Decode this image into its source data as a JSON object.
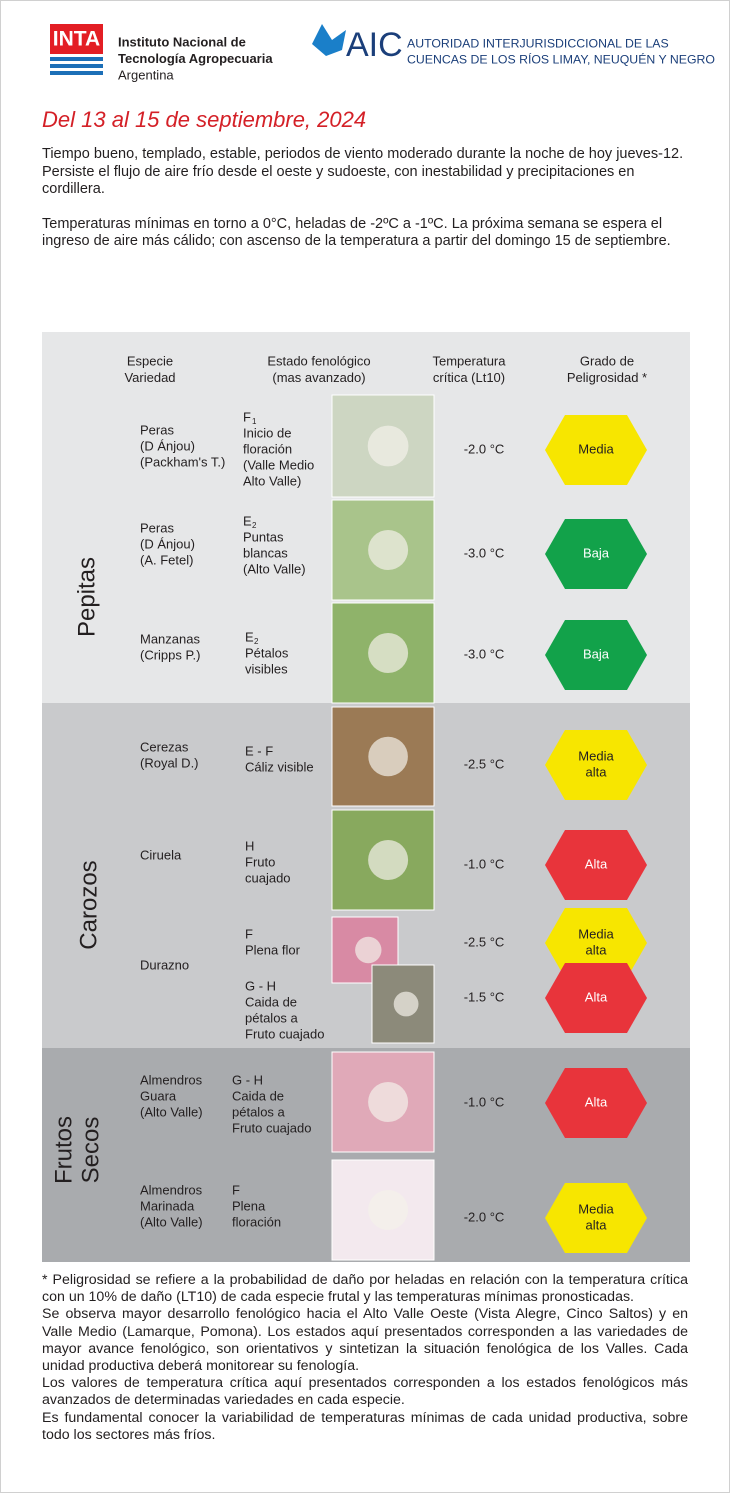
{
  "header": {
    "inta": {
      "logo": "INTA",
      "lines": [
        "Instituto Nacional de",
        "Tecnología Agropecuaria",
        "Argentina"
      ]
    },
    "aic": {
      "logo": "AIC",
      "lines": [
        "AUTORIDAD INTERJURISDICCIONAL DE LAS",
        "CUENCAS DE  LOS RÍOS LIMAY, NEUQUÉN Y NEGRO"
      ]
    }
  },
  "title": "Del 13 al 15 de septiembre, 2024",
  "intro": [
    "Tiempo bueno, templado, estable, periodos de viento moderado durante la noche de hoy jueves-12. Persiste el flujo de aire frío desde el oeste y sudoeste, con inestabilidad y precipitaciones en cordillera.",
    "Temperaturas mínimas en torno a 0°C, heladas de -2ºC a -1ºC. La próxima semana se espera el ingreso de aire más cálido; con ascenso de la temperatura a partir del domingo 15 de septiembre."
  ],
  "table": {
    "columns": [
      [
        "Especie",
        "Variedad"
      ],
      [
        "Estado fenológico",
        "(mas avanzado)"
      ],
      [
        "Temperatura",
        "crítica (Lt10)"
      ],
      [
        "Grado de",
        "Peligrosidad *"
      ]
    ],
    "groups": [
      {
        "name": [
          "Pepitas"
        ],
        "rows": [
          {
            "species": [
              "Peras",
              "(D Ánjou)",
              "(Packham's T.)"
            ],
            "stages": [
              {
                "code": "F",
                "sub": "1",
                "lines": [
                  "Inicio de",
                  "floración",
                  "(Valle Medio",
                  "Alto Valle)"
                ],
                "temperature": "-2.0 °C",
                "risk": [
                  "Media"
                ],
                "risk_color": "#f7e600"
              }
            ]
          },
          {
            "species": [
              "Peras",
              "(D Ánjou)",
              "(A. Fetel)"
            ],
            "stages": [
              {
                "code": "E",
                "sub": "2",
                "lines": [
                  "Puntas",
                  "blancas",
                  "(Alto Valle)"
                ],
                "temperature": "-3.0 °C",
                "risk": [
                  "Baja"
                ],
                "risk_color": "#12a24a"
              }
            ]
          },
          {
            "species": [
              "Manzanas",
              "(Cripps P.)"
            ],
            "stages": [
              {
                "code": "E",
                "sub": "2",
                "lines": [
                  "Pétalos",
                  "visibles"
                ],
                "temperature": "-3.0 °C",
                "risk": [
                  "Baja"
                ],
                "risk_color": "#12a24a"
              }
            ]
          }
        ]
      },
      {
        "name": [
          "Carozos"
        ],
        "rows": [
          {
            "species": [
              "Cerezas",
              "(Royal D.)"
            ],
            "stages": [
              {
                "code": "E - F",
                "lines": [
                  "Cáliz visible"
                ],
                "temperature": "-2.5 °C",
                "risk": [
                  "Media",
                  "alta"
                ],
                "risk_color": "#f7e600"
              }
            ]
          },
          {
            "species": [
              "Ciruela"
            ],
            "stages": [
              {
                "code": "H",
                "lines": [
                  "Fruto",
                  "cuajado"
                ],
                "temperature": "-1.0 °C",
                "risk": [
                  "Alta"
                ],
                "risk_color": "#e8343b"
              }
            ]
          },
          {
            "species": [
              "Durazno"
            ],
            "stages": [
              {
                "code": "F",
                "lines": [
                  "Plena flor"
                ],
                "temperature": "-2.5 °C",
                "risk": [
                  "Media",
                  "alta"
                ],
                "risk_color": "#f7e600"
              },
              {
                "code": "G - H",
                "lines": [
                  "Caida de",
                  "pétalos a",
                  "Fruto cuajado"
                ],
                "temperature": "-1.5 °C",
                "risk": [
                  "Alta"
                ],
                "risk_color": "#e8343b"
              }
            ]
          }
        ]
      },
      {
        "name": [
          "Frutos",
          "Secos"
        ],
        "rows": [
          {
            "species": [
              "Almendros",
              "Guara",
              "(Alto Valle)"
            ],
            "stages": [
              {
                "code": "G - H",
                "lines": [
                  "Caida de",
                  "pétalos a",
                  "Fruto cuajado"
                ],
                "temperature": "-1.0 °C",
                "risk": [
                  "Alta"
                ],
                "risk_color": "#e8343b"
              }
            ]
          },
          {
            "species": [
              "Almendros",
              "Marinada",
              "(Alto Valle)"
            ],
            "stages": [
              {
                "code": "F",
                "lines": [
                  "Plena",
                  "floración"
                ],
                "temperature": "-2.0 °C",
                "risk": [
                  "Media",
                  "alta"
                ],
                "risk_color": "#f7e600"
              }
            ]
          }
        ]
      }
    ]
  },
  "footer": [
    "* Peligrosidad se refiere a la probabilidad de daño por heladas en relación con la temperatura crítica con un 10% de daño (LT10) de cada especie frutal y las temperaturas mínimas pronosticadas.",
    "Se observa mayor desarrollo fenológico hacia el Alto Valle Oeste (Vista Alegre, Cinco Saltos) y en Valle Medio (Lamarque, Pomona). Los estados aquí presentados corresponden a las variedades de mayor avance fenológico, son orientativos y sintetizan la situación fenológica de los Valles. Cada unidad productiva deberá monitorear su fenología.",
    "Los valores de temperatura crítica aquí presentados corresponden a los estados fenológicos más avanzados de determinadas variedades en cada especie.",
    "Es fundamental conocer la variabilidad de temperaturas mínimas de cada unidad productiva, sobre todo los sectores más fríos."
  ]
}
